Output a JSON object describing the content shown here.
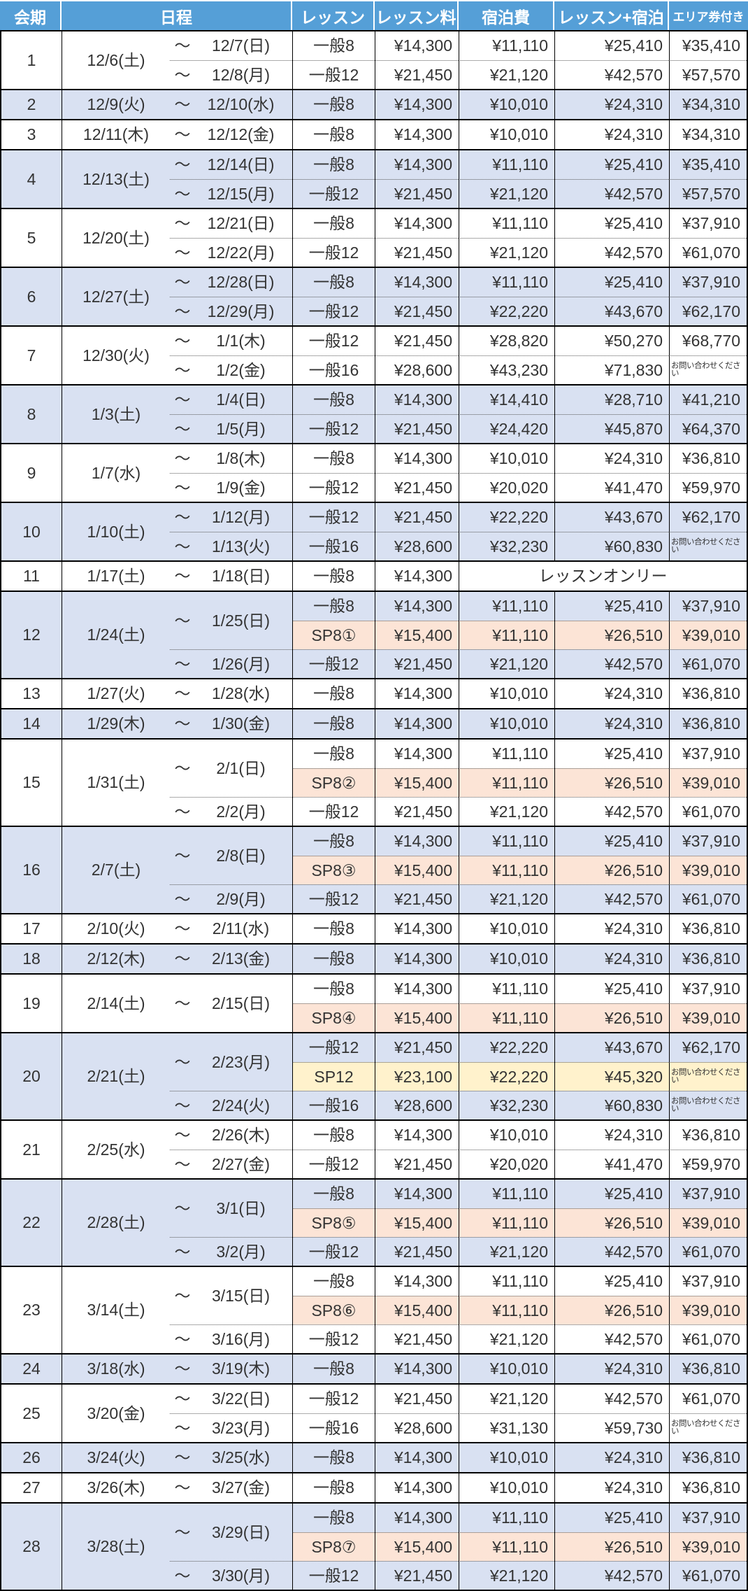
{
  "header": {
    "labels": [
      "会期",
      "日程",
      "レッスン",
      "レッスン料",
      "宿泊費",
      "レッスン+宿泊",
      "エリア券付き"
    ]
  },
  "labels": {
    "tilde": "～",
    "lesson_only": "レッスンオンリー",
    "contact": "お問い合わせください"
  },
  "colors": {
    "header_bg": "#559FD7",
    "row_blue": "#D9E1F2",
    "sp8_row": "#FCE4D6",
    "sp12_row": "#FFF2CC",
    "header_text": "#FFFFFF",
    "body_text": "#333333"
  },
  "sessions": [
    {
      "no": "1",
      "start": "12/6(土)",
      "shade": "white",
      "groups": [
        {
          "end": "12/7(日)",
          "rows": [
            {
              "lesson": "一般8",
              "fee": "¥14,300",
              "stay": "¥11,110",
              "total": "¥25,410",
              "area": "¥35,410"
            }
          ]
        },
        {
          "end": "12/8(月)",
          "rows": [
            {
              "lesson": "一般12",
              "fee": "¥21,450",
              "stay": "¥21,120",
              "total": "¥42,570",
              "area": "¥57,570"
            }
          ]
        }
      ]
    },
    {
      "no": "2",
      "start": "12/9(火)",
      "shade": "blue",
      "groups": [
        {
          "end": "12/10(水)",
          "rows": [
            {
              "lesson": "一般8",
              "fee": "¥14,300",
              "stay": "¥10,010",
              "total": "¥24,310",
              "area": "¥34,310"
            }
          ]
        }
      ]
    },
    {
      "no": "3",
      "start": "12/11(木)",
      "shade": "white",
      "groups": [
        {
          "end": "12/12(金)",
          "rows": [
            {
              "lesson": "一般8",
              "fee": "¥14,300",
              "stay": "¥10,010",
              "total": "¥24,310",
              "area": "¥34,310"
            }
          ]
        }
      ]
    },
    {
      "no": "4",
      "start": "12/13(土)",
      "shade": "blue",
      "groups": [
        {
          "end": "12/14(日)",
          "rows": [
            {
              "lesson": "一般8",
              "fee": "¥14,300",
              "stay": "¥11,110",
              "total": "¥25,410",
              "area": "¥35,410"
            }
          ]
        },
        {
          "end": "12/15(月)",
          "rows": [
            {
              "lesson": "一般12",
              "fee": "¥21,450",
              "stay": "¥21,120",
              "total": "¥42,570",
              "area": "¥57,570"
            }
          ]
        }
      ]
    },
    {
      "no": "5",
      "start": "12/20(土)",
      "shade": "white",
      "groups": [
        {
          "end": "12/21(日)",
          "rows": [
            {
              "lesson": "一般8",
              "fee": "¥14,300",
              "stay": "¥11,110",
              "total": "¥25,410",
              "area": "¥37,910"
            }
          ]
        },
        {
          "end": "12/22(月)",
          "rows": [
            {
              "lesson": "一般12",
              "fee": "¥21,450",
              "stay": "¥21,120",
              "total": "¥42,570",
              "area": "¥61,070"
            }
          ]
        }
      ]
    },
    {
      "no": "6",
      "start": "12/27(土)",
      "shade": "blue",
      "groups": [
        {
          "end": "12/28(日)",
          "rows": [
            {
              "lesson": "一般8",
              "fee": "¥14,300",
              "stay": "¥11,110",
              "total": "¥25,410",
              "area": "¥37,910"
            }
          ]
        },
        {
          "end": "12/29(月)",
          "rows": [
            {
              "lesson": "一般12",
              "fee": "¥21,450",
              "stay": "¥22,220",
              "total": "¥43,670",
              "area": "¥62,170"
            }
          ]
        }
      ]
    },
    {
      "no": "7",
      "start": "12/30(火)",
      "shade": "white",
      "groups": [
        {
          "end": "1/1(木)",
          "rows": [
            {
              "lesson": "一般12",
              "fee": "¥21,450",
              "stay": "¥28,820",
              "total": "¥50,270",
              "area": "¥68,770"
            }
          ]
        },
        {
          "end": "1/2(金)",
          "rows": [
            {
              "lesson": "一般16",
              "fee": "¥28,600",
              "stay": "¥43,230",
              "total": "¥71,830",
              "area_contact": true
            }
          ]
        }
      ]
    },
    {
      "no": "8",
      "start": "1/3(土)",
      "shade": "blue",
      "groups": [
        {
          "end": "1/4(日)",
          "rows": [
            {
              "lesson": "一般8",
              "fee": "¥14,300",
              "stay": "¥14,410",
              "total": "¥28,710",
              "area": "¥41,210"
            }
          ]
        },
        {
          "end": "1/5(月)",
          "rows": [
            {
              "lesson": "一般12",
              "fee": "¥21,450",
              "stay": "¥24,420",
              "total": "¥45,870",
              "area": "¥64,370"
            }
          ]
        }
      ]
    },
    {
      "no": "9",
      "start": "1/7(水)",
      "shade": "white",
      "groups": [
        {
          "end": "1/8(木)",
          "rows": [
            {
              "lesson": "一般8",
              "fee": "¥14,300",
              "stay": "¥10,010",
              "total": "¥24,310",
              "area": "¥36,810"
            }
          ]
        },
        {
          "end": "1/9(金)",
          "rows": [
            {
              "lesson": "一般12",
              "fee": "¥21,450",
              "stay": "¥20,020",
              "total": "¥41,470",
              "area": "¥59,970"
            }
          ]
        }
      ]
    },
    {
      "no": "10",
      "start": "1/10(土)",
      "shade": "blue",
      "groups": [
        {
          "end": "1/12(月)",
          "rows": [
            {
              "lesson": "一般12",
              "fee": "¥21,450",
              "stay": "¥22,220",
              "total": "¥43,670",
              "area": "¥62,170"
            }
          ]
        },
        {
          "end": "1/13(火)",
          "rows": [
            {
              "lesson": "一般16",
              "fee": "¥28,600",
              "stay": "¥32,230",
              "total": "¥60,830",
              "area_contact": true
            }
          ]
        }
      ]
    },
    {
      "no": "11",
      "start": "1/17(土)",
      "shade": "white",
      "groups": [
        {
          "end": "1/18(日)",
          "rows": [
            {
              "lesson": "一般8",
              "fee": "¥14,300",
              "lesson_only": true
            }
          ]
        }
      ]
    },
    {
      "no": "12",
      "start": "1/24(土)",
      "shade": "blue",
      "groups": [
        {
          "end": "1/25(日)",
          "rows": [
            {
              "lesson": "一般8",
              "fee": "¥14,300",
              "stay": "¥11,110",
              "total": "¥25,410",
              "area": "¥37,910"
            },
            {
              "lesson": "SP8①",
              "fee": "¥15,400",
              "stay": "¥11,110",
              "total": "¥26,510",
              "area": "¥39,010",
              "tone": "peach"
            }
          ]
        },
        {
          "end": "1/26(月)",
          "rows": [
            {
              "lesson": "一般12",
              "fee": "¥21,450",
              "stay": "¥21,120",
              "total": "¥42,570",
              "area": "¥61,070"
            }
          ]
        }
      ]
    },
    {
      "no": "13",
      "start": "1/27(火)",
      "shade": "white",
      "groups": [
        {
          "end": "1/28(水)",
          "rows": [
            {
              "lesson": "一般8",
              "fee": "¥14,300",
              "stay": "¥10,010",
              "total": "¥24,310",
              "area": "¥36,810"
            }
          ]
        }
      ]
    },
    {
      "no": "14",
      "start": "1/29(木)",
      "shade": "blue",
      "groups": [
        {
          "end": "1/30(金)",
          "rows": [
            {
              "lesson": "一般8",
              "fee": "¥14,300",
              "stay": "¥10,010",
              "total": "¥24,310",
              "area": "¥36,810"
            }
          ]
        }
      ]
    },
    {
      "no": "15",
      "start": "1/31(土)",
      "shade": "white",
      "groups": [
        {
          "end": "2/1(日)",
          "rows": [
            {
              "lesson": "一般8",
              "fee": "¥14,300",
              "stay": "¥11,110",
              "total": "¥25,410",
              "area": "¥37,910"
            },
            {
              "lesson": "SP8②",
              "fee": "¥15,400",
              "stay": "¥11,110",
              "total": "¥26,510",
              "area": "¥39,010",
              "tone": "peach"
            }
          ]
        },
        {
          "end": "2/2(月)",
          "rows": [
            {
              "lesson": "一般12",
              "fee": "¥21,450",
              "stay": "¥21,120",
              "total": "¥42,570",
              "area": "¥61,070"
            }
          ]
        }
      ]
    },
    {
      "no": "16",
      "start": "2/7(土)",
      "shade": "blue",
      "groups": [
        {
          "end": "2/8(日)",
          "rows": [
            {
              "lesson": "一般8",
              "fee": "¥14,300",
              "stay": "¥11,110",
              "total": "¥25,410",
              "area": "¥37,910"
            },
            {
              "lesson": "SP8③",
              "fee": "¥15,400",
              "stay": "¥11,110",
              "total": "¥26,510",
              "area": "¥39,010",
              "tone": "peach"
            }
          ]
        },
        {
          "end": "2/9(月)",
          "rows": [
            {
              "lesson": "一般12",
              "fee": "¥21,450",
              "stay": "¥21,120",
              "total": "¥42,570",
              "area": "¥61,070"
            }
          ]
        }
      ]
    },
    {
      "no": "17",
      "start": "2/10(火)",
      "shade": "white",
      "groups": [
        {
          "end": "2/11(水)",
          "rows": [
            {
              "lesson": "一般8",
              "fee": "¥14,300",
              "stay": "¥10,010",
              "total": "¥24,310",
              "area": "¥36,810"
            }
          ]
        }
      ]
    },
    {
      "no": "18",
      "start": "2/12(木)",
      "shade": "blue",
      "groups": [
        {
          "end": "2/13(金)",
          "rows": [
            {
              "lesson": "一般8",
              "fee": "¥14,300",
              "stay": "¥10,010",
              "total": "¥24,310",
              "area": "¥36,810"
            }
          ]
        }
      ]
    },
    {
      "no": "19",
      "start": "2/14(土)",
      "shade": "white",
      "groups": [
        {
          "end": "2/15(日)",
          "rows": [
            {
              "lesson": "一般8",
              "fee": "¥14,300",
              "stay": "¥11,110",
              "total": "¥25,410",
              "area": "¥37,910"
            },
            {
              "lesson": "SP8④",
              "fee": "¥15,400",
              "stay": "¥11,110",
              "total": "¥26,510",
              "area": "¥39,010",
              "tone": "peach"
            }
          ]
        }
      ]
    },
    {
      "no": "20",
      "start": "2/21(土)",
      "shade": "blue",
      "groups": [
        {
          "end": "2/23(月)",
          "rows": [
            {
              "lesson": "一般12",
              "fee": "¥21,450",
              "stay": "¥22,220",
              "total": "¥43,670",
              "area": "¥62,170"
            },
            {
              "lesson": "SP12",
              "fee": "¥23,100",
              "stay": "¥22,220",
              "total": "¥45,320",
              "area_contact": true,
              "tone": "yellow"
            }
          ]
        },
        {
          "end": "2/24(火)",
          "rows": [
            {
              "lesson": "一般16",
              "fee": "¥28,600",
              "stay": "¥32,230",
              "total": "¥60,830",
              "area_contact": true
            }
          ]
        }
      ]
    },
    {
      "no": "21",
      "start": "2/25(水)",
      "shade": "white",
      "groups": [
        {
          "end": "2/26(木)",
          "rows": [
            {
              "lesson": "一般8",
              "fee": "¥14,300",
              "stay": "¥10,010",
              "total": "¥24,310",
              "area": "¥36,810"
            }
          ]
        },
        {
          "end": "2/27(金)",
          "rows": [
            {
              "lesson": "一般12",
              "fee": "¥21,450",
              "stay": "¥20,020",
              "total": "¥41,470",
              "area": "¥59,970"
            }
          ]
        }
      ]
    },
    {
      "no": "22",
      "start": "2/28(土)",
      "shade": "blue",
      "groups": [
        {
          "end": "3/1(日)",
          "rows": [
            {
              "lesson": "一般8",
              "fee": "¥14,300",
              "stay": "¥11,110",
              "total": "¥25,410",
              "area": "¥37,910"
            },
            {
              "lesson": "SP8⑤",
              "fee": "¥15,400",
              "stay": "¥11,110",
              "total": "¥26,510",
              "area": "¥39,010",
              "tone": "peach"
            }
          ]
        },
        {
          "end": "3/2(月)",
          "rows": [
            {
              "lesson": "一般12",
              "fee": "¥21,450",
              "stay": "¥21,120",
              "total": "¥42,570",
              "area": "¥61,070"
            }
          ]
        }
      ]
    },
    {
      "no": "23",
      "start": "3/14(土)",
      "shade": "white",
      "groups": [
        {
          "end": "3/15(日)",
          "rows": [
            {
              "lesson": "一般8",
              "fee": "¥14,300",
              "stay": "¥11,110",
              "total": "¥25,410",
              "area": "¥37,910"
            },
            {
              "lesson": "SP8⑥",
              "fee": "¥15,400",
              "stay": "¥11,110",
              "total": "¥26,510",
              "area": "¥39,010",
              "tone": "peach"
            }
          ]
        },
        {
          "end": "3/16(月)",
          "rows": [
            {
              "lesson": "一般12",
              "fee": "¥21,450",
              "stay": "¥21,120",
              "total": "¥42,570",
              "area": "¥61,070"
            }
          ]
        }
      ]
    },
    {
      "no": "24",
      "start": "3/18(水)",
      "shade": "blue",
      "groups": [
        {
          "end": "3/19(木)",
          "rows": [
            {
              "lesson": "一般8",
              "fee": "¥14,300",
              "stay": "¥10,010",
              "total": "¥24,310",
              "area": "¥36,810"
            }
          ]
        }
      ]
    },
    {
      "no": "25",
      "start": "3/20(金)",
      "shade": "white",
      "groups": [
        {
          "end": "3/22(日)",
          "rows": [
            {
              "lesson": "一般12",
              "fee": "¥21,450",
              "stay": "¥21,120",
              "total": "¥42,570",
              "area": "¥61,070"
            }
          ]
        },
        {
          "end": "3/23(月)",
          "rows": [
            {
              "lesson": "一般16",
              "fee": "¥28,600",
              "stay": "¥31,130",
              "total": "¥59,730",
              "area_contact": true
            }
          ]
        }
      ]
    },
    {
      "no": "26",
      "start": "3/24(火)",
      "shade": "blue",
      "groups": [
        {
          "end": "3/25(水)",
          "rows": [
            {
              "lesson": "一般8",
              "fee": "¥14,300",
              "stay": "¥10,010",
              "total": "¥24,310",
              "area": "¥36,810"
            }
          ]
        }
      ]
    },
    {
      "no": "27",
      "start": "3/26(木)",
      "shade": "white",
      "groups": [
        {
          "end": "3/27(金)",
          "rows": [
            {
              "lesson": "一般8",
              "fee": "¥14,300",
              "stay": "¥10,010",
              "total": "¥24,310",
              "area": "¥36,810"
            }
          ]
        }
      ]
    },
    {
      "no": "28",
      "start": "3/28(土)",
      "shade": "blue",
      "groups": [
        {
          "end": "3/29(日)",
          "rows": [
            {
              "lesson": "一般8",
              "fee": "¥14,300",
              "stay": "¥11,110",
              "total": "¥25,410",
              "area": "¥37,910"
            },
            {
              "lesson": "SP8⑦",
              "fee": "¥15,400",
              "stay": "¥11,110",
              "total": "¥26,510",
              "area": "¥39,010",
              "tone": "peach"
            }
          ]
        },
        {
          "end": "3/30(月)",
          "rows": [
            {
              "lesson": "一般12",
              "fee": "¥21,450",
              "stay": "¥21,120",
              "total": "¥42,570",
              "area": "¥61,070"
            }
          ]
        }
      ]
    }
  ]
}
